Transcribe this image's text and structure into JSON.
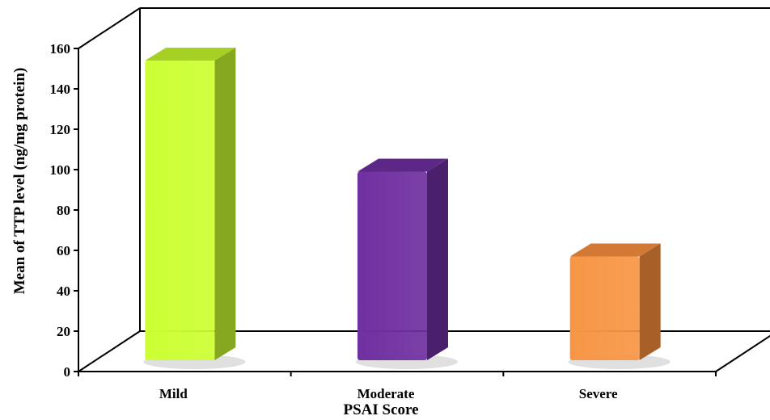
{
  "chart_data": {
    "type": "bar",
    "title": "",
    "xlabel": "PSAI Score",
    "ylabel": "Mean of TTP level (ng/mg protein)",
    "categories": [
      "Mild",
      "Moderate",
      "Severe"
    ],
    "values": [
      154,
      99,
      57
    ],
    "ylim": [
      0,
      160
    ],
    "yticks": [
      0,
      20,
      40,
      60,
      80,
      100,
      120,
      140,
      160
    ],
    "grid": false,
    "legend": "none",
    "style": "3d-column",
    "colors": [
      {
        "front": "#ccff33",
        "side": "#86a820",
        "top": "#a6d124"
      },
      {
        "front": "#7030a0",
        "side": "#4a1f6b",
        "top": "#5c2787"
      },
      {
        "front": "#f79646",
        "side": "#a86029",
        "top": "#d27a35"
      }
    ]
  }
}
